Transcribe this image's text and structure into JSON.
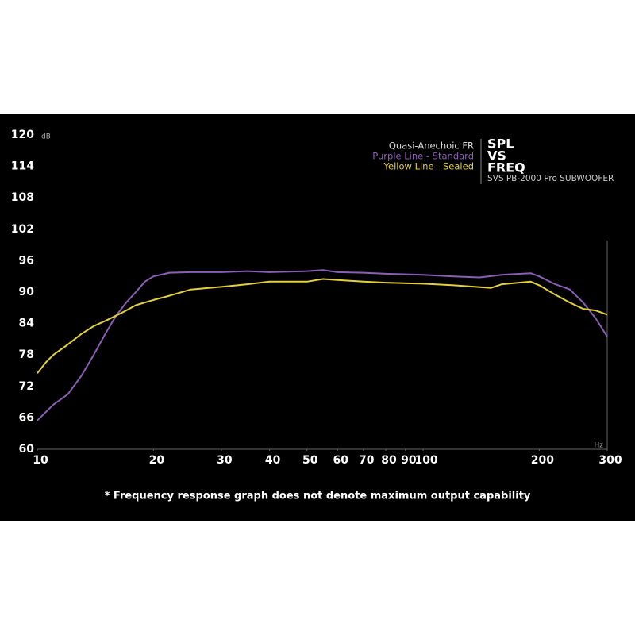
{
  "chart_data": {
    "type": "line",
    "title_lines": [
      "SPL",
      "VS",
      "FREQ"
    ],
    "subtitle": "SVS PB-2000 Pro SUBWOOFER",
    "legend_title": "Quasi-Anechoic FR",
    "y_unit": "dB",
    "x_unit": "Hz",
    "footnote": "* Frequency response graph does not denote maximum output capability",
    "x_scale": "log",
    "xlim": [
      10,
      300
    ],
    "xticks": [
      10,
      20,
      30,
      40,
      50,
      60,
      70,
      80,
      90,
      100,
      200,
      300
    ],
    "ylim": [
      60,
      120
    ],
    "yticks": [
      60,
      66,
      72,
      78,
      84,
      90,
      96,
      102,
      108,
      114,
      120
    ],
    "series": [
      {
        "name": "Purple Line - Standard",
        "color": "#8a5fb5",
        "x": [
          10,
          11,
          12,
          13,
          14,
          15,
          16,
          17,
          18,
          19,
          20,
          22,
          25,
          30,
          35,
          40,
          50,
          55,
          60,
          70,
          80,
          100,
          120,
          140,
          160,
          190,
          200,
          220,
          240,
          260,
          280,
          300
        ],
        "values": [
          65.5,
          68.5,
          70.5,
          74,
          78,
          82,
          85.5,
          88,
          90,
          92,
          93,
          93.7,
          93.8,
          93.8,
          94,
          93.8,
          94,
          94.2,
          93.8,
          93.7,
          93.5,
          93.3,
          93,
          92.8,
          93.3,
          93.6,
          93,
          91.5,
          90.5,
          88,
          85,
          81.5
        ]
      },
      {
        "name": "Yellow Line - Sealed",
        "color": "#e3d13c",
        "x": [
          10,
          10.5,
          11,
          12,
          13,
          14,
          15,
          16,
          17,
          18,
          20,
          22,
          25,
          30,
          35,
          40,
          50,
          55,
          60,
          70,
          80,
          100,
          120,
          150,
          160,
          190,
          200,
          220,
          240,
          260,
          280,
          300
        ],
        "values": [
          74.5,
          76.5,
          78,
          80,
          82,
          83.5,
          84.5,
          85.5,
          86.5,
          87.5,
          88.5,
          89.3,
          90.5,
          91,
          91.5,
          92,
          92,
          92.5,
          92.3,
          92,
          91.8,
          91.6,
          91.3,
          90.8,
          91.5,
          92,
          91.3,
          89.5,
          88,
          86.8,
          86.5,
          85.7
        ]
      }
    ]
  }
}
